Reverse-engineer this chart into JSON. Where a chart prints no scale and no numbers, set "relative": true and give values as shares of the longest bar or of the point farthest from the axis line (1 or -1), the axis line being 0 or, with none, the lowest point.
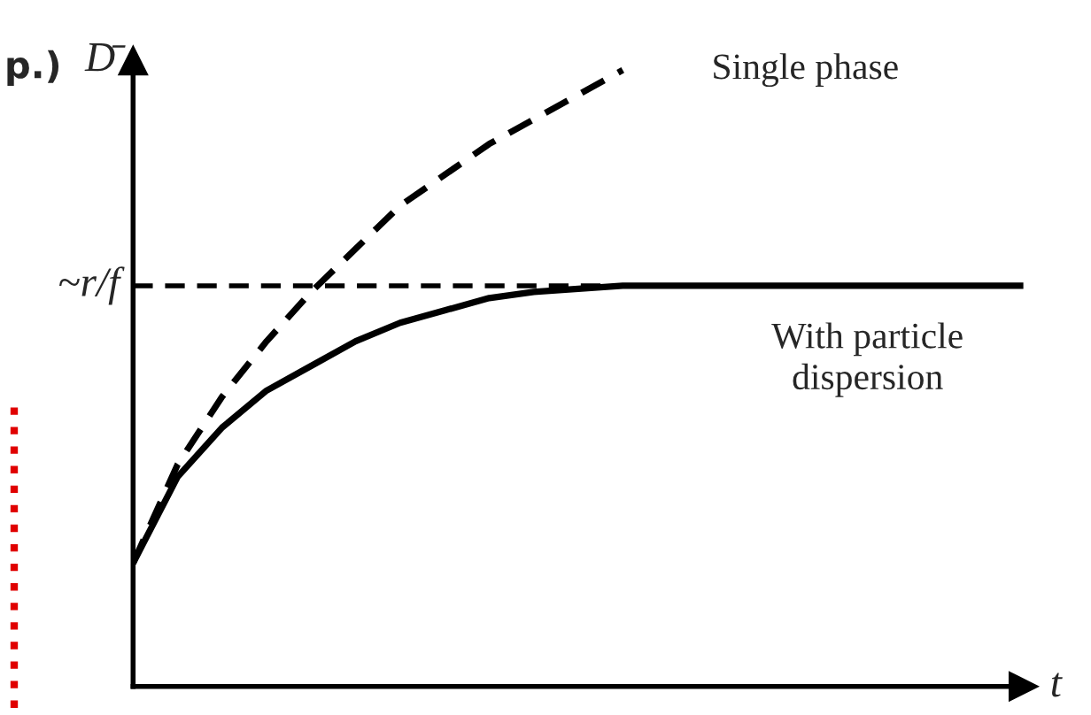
{
  "chart_data": {
    "type": "line",
    "relative": true,
    "xlabel": "t",
    "ylabel": "D̄",
    "categories": [
      null,
      null,
      null,
      null,
      null,
      null,
      null,
      null,
      null,
      null,
      null,
      null,
      null,
      null,
      null,
      null,
      null,
      null,
      null,
      null,
      null
    ],
    "series": [
      {
        "color": "#000000",
        "line_style": "dashed",
        "values": [
          0.2,
          0.36,
          0.47,
          0.56,
          0.64,
          0.71,
          0.78,
          0.83,
          0.88,
          0.92,
          0.96,
          1.0,
          null,
          null,
          null,
          null,
          null,
          null,
          null,
          null,
          null
        ]
      },
      {
        "color": "#000000",
        "line_style": "solid",
        "values": [
          0.2,
          0.34,
          0.42,
          0.48,
          0.52,
          0.56,
          0.59,
          0.61,
          0.63,
          0.64,
          0.645,
          0.65,
          0.65,
          0.65,
          0.65,
          0.65,
          0.65,
          0.65,
          0.65,
          0.65,
          0.65
        ]
      }
    ],
    "ref_lines": [
      {
        "axis": "y",
        "value": 0.65,
        "label": "~r/f",
        "color": "#000000",
        "line_style": "dashed"
      }
    ],
    "annotations": [
      "Single phase",
      "With particle\ndispersion",
      "p.)"
    ],
    "marker": "none"
  }
}
